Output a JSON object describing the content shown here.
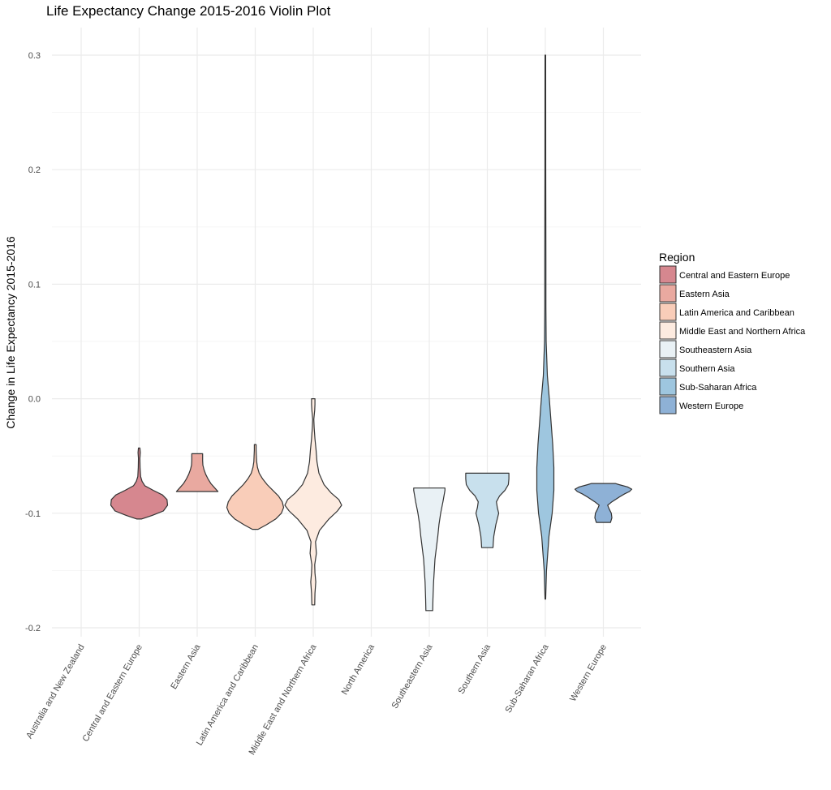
{
  "chart_data": {
    "type": "violin",
    "title": "Life Expectancy Change 2015-2016 Violin Plot",
    "xlabel": "",
    "ylabel": "Change in Life Expectancy 2015-2016",
    "ylim": [
      -0.2,
      0.3
    ],
    "yticks": [
      -0.2,
      -0.1,
      0.0,
      0.1,
      0.2,
      0.3
    ],
    "ytick_labels": [
      "-0.2",
      "-0.1",
      "0.0",
      "0.1",
      "0.2",
      "0.3"
    ],
    "grid": true,
    "legend_position": "right",
    "legend_title": "Region",
    "categories": [
      "Australia and New Zealand",
      "Central and Eastern Europe",
      "Eastern Asia",
      "Latin America and Caribbean",
      "Middle East and Northern Africa",
      "North America",
      "Southeastern Asia",
      "Southern Asia",
      "Sub-Saharan Africa",
      "Western Europe"
    ],
    "series": [
      {
        "name": "Central and Eastern Europe",
        "category_index": 1,
        "color": "#d6878f",
        "profile": [
          [
            -0.105,
            0.08
          ],
          [
            -0.102,
            0.45
          ],
          [
            -0.098,
            0.85
          ],
          [
            -0.093,
            1.0
          ],
          [
            -0.088,
            0.98
          ],
          [
            -0.084,
            0.82
          ],
          [
            -0.08,
            0.5
          ],
          [
            -0.076,
            0.2
          ],
          [
            -0.072,
            0.1
          ],
          [
            -0.068,
            0.05
          ],
          [
            -0.06,
            0.03
          ],
          [
            -0.052,
            0.025
          ],
          [
            -0.047,
            0.04
          ],
          [
            -0.043,
            0.025
          ]
        ]
      },
      {
        "name": "Eastern Asia",
        "category_index": 2,
        "color": "#e9a9a0",
        "profile": [
          [
            -0.081,
            0.73
          ],
          [
            -0.078,
            0.62
          ],
          [
            -0.074,
            0.48
          ],
          [
            -0.07,
            0.38
          ],
          [
            -0.066,
            0.3
          ],
          [
            -0.062,
            0.24
          ],
          [
            -0.058,
            0.2
          ],
          [
            -0.054,
            0.19
          ],
          [
            -0.051,
            0.19
          ],
          [
            -0.048,
            0.19
          ]
        ]
      },
      {
        "name": "Latin America and Caribbean",
        "category_index": 3,
        "color": "#f9cdb9",
        "profile": [
          [
            -0.114,
            0.1
          ],
          [
            -0.11,
            0.4
          ],
          [
            -0.105,
            0.72
          ],
          [
            -0.1,
            0.92
          ],
          [
            -0.095,
            1.0
          ],
          [
            -0.09,
            0.95
          ],
          [
            -0.085,
            0.82
          ],
          [
            -0.08,
            0.62
          ],
          [
            -0.075,
            0.42
          ],
          [
            -0.07,
            0.26
          ],
          [
            -0.065,
            0.14
          ],
          [
            -0.06,
            0.08
          ],
          [
            -0.055,
            0.05
          ],
          [
            -0.05,
            0.04
          ],
          [
            -0.045,
            0.03
          ],
          [
            -0.04,
            0.03
          ]
        ]
      },
      {
        "name": "Middle East and Northern Africa",
        "category_index": 4,
        "color": "#fdebe0",
        "profile": [
          [
            -0.18,
            0.05
          ],
          [
            -0.17,
            0.06
          ],
          [
            -0.16,
            0.09
          ],
          [
            -0.152,
            0.06
          ],
          [
            -0.145,
            0.05
          ],
          [
            -0.135,
            0.11
          ],
          [
            -0.125,
            0.08
          ],
          [
            -0.115,
            0.22
          ],
          [
            -0.105,
            0.55
          ],
          [
            -0.098,
            0.85
          ],
          [
            -0.093,
            1.0
          ],
          [
            -0.088,
            0.9
          ],
          [
            -0.082,
            0.62
          ],
          [
            -0.075,
            0.38
          ],
          [
            -0.065,
            0.2
          ],
          [
            -0.055,
            0.13
          ],
          [
            -0.045,
            0.1
          ],
          [
            -0.035,
            0.06
          ],
          [
            -0.025,
            0.03
          ],
          [
            -0.018,
            0.02
          ],
          [
            -0.01,
            0.05
          ],
          [
            -0.005,
            0.06
          ],
          [
            0.0,
            0.06
          ]
        ]
      },
      {
        "name": "Southeastern Asia",
        "category_index": 6,
        "color": "#e9f1f5",
        "profile": [
          [
            -0.185,
            0.12
          ],
          [
            -0.175,
            0.13
          ],
          [
            -0.16,
            0.15
          ],
          [
            -0.14,
            0.2
          ],
          [
            -0.12,
            0.3
          ],
          [
            -0.11,
            0.34
          ],
          [
            -0.1,
            0.4
          ],
          [
            -0.09,
            0.48
          ],
          [
            -0.08,
            0.55
          ],
          [
            -0.078,
            0.55
          ]
        ]
      },
      {
        "name": "Southern Asia",
        "category_index": 7,
        "color": "#c8e0ed",
        "profile": [
          [
            -0.13,
            0.2
          ],
          [
            -0.125,
            0.21
          ],
          [
            -0.12,
            0.23
          ],
          [
            -0.11,
            0.3
          ],
          [
            -0.1,
            0.4
          ],
          [
            -0.095,
            0.35
          ],
          [
            -0.09,
            0.32
          ],
          [
            -0.085,
            0.43
          ],
          [
            -0.08,
            0.62
          ],
          [
            -0.075,
            0.74
          ],
          [
            -0.07,
            0.76
          ],
          [
            -0.065,
            0.76
          ]
        ]
      },
      {
        "name": "Sub-Saharan Africa",
        "category_index": 8,
        "color": "#9ec6df",
        "profile": [
          [
            -0.175,
            0.01
          ],
          [
            -0.15,
            0.04
          ],
          [
            -0.12,
            0.13
          ],
          [
            -0.1,
            0.24
          ],
          [
            -0.08,
            0.3
          ],
          [
            -0.06,
            0.3
          ],
          [
            -0.04,
            0.26
          ],
          [
            -0.02,
            0.2
          ],
          [
            0.0,
            0.14
          ],
          [
            0.02,
            0.07
          ],
          [
            0.05,
            0.03
          ],
          [
            0.08,
            0.02
          ],
          [
            0.12,
            0.02
          ],
          [
            0.2,
            0.015
          ],
          [
            0.3,
            0.01
          ]
        ]
      },
      {
        "name": "Western Europe",
        "category_index": 9,
        "color": "#8eb1d6",
        "profile": [
          [
            -0.108,
            0.25
          ],
          [
            -0.104,
            0.3
          ],
          [
            -0.1,
            0.28
          ],
          [
            -0.096,
            0.2
          ],
          [
            -0.093,
            0.15
          ],
          [
            -0.09,
            0.3
          ],
          [
            -0.086,
            0.55
          ],
          [
            -0.083,
            0.75
          ],
          [
            -0.081,
            0.92
          ],
          [
            -0.079,
            1.0
          ],
          [
            -0.077,
            0.85
          ],
          [
            -0.075,
            0.55
          ],
          [
            -0.074,
            0.42
          ]
        ]
      }
    ]
  }
}
